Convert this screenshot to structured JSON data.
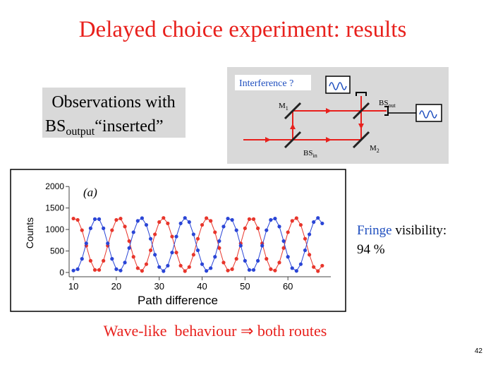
{
  "title": "Delayed choice experiment: results",
  "observations": {
    "line1": "Observations with",
    "bs": "BS",
    "sub": "output",
    "quote": "“inserted”"
  },
  "diagram": {
    "label": "Interference ?",
    "m1": "M",
    "m1_sub": "1",
    "m2": "M",
    "m2_sub": "2",
    "bs_in": "BS",
    "bs_in_sub": "in",
    "bs_out": "BS",
    "bs_out_sub": "out"
  },
  "chart_data": {
    "type": "scatter",
    "annotation": "(a)",
    "xlabel": "Path difference",
    "ylabel": "Counts",
    "x": [
      10,
      11,
      12,
      13,
      14,
      15,
      16,
      17,
      18,
      19,
      20,
      21,
      22,
      23,
      24,
      25,
      26,
      27,
      28,
      29,
      30,
      31,
      32,
      33,
      34,
      35,
      36,
      37,
      38,
      39,
      40,
      41,
      42,
      43,
      44,
      45,
      46,
      47,
      48,
      49,
      50,
      51,
      52,
      53,
      54,
      55,
      56,
      57,
      58,
      59,
      60,
      61,
      62,
      63,
      64,
      65,
      66,
      67,
      68
    ],
    "series": [
      {
        "color": "#e8352b",
        "values": [
          1255,
          1223,
          983,
          623,
          272,
          59,
          59,
          272,
          623,
          983,
          1223,
          1255,
          1069,
          731,
          364,
          100,
          36,
          193,
          516,
          887,
          1173,
          1269,
          1142,
          836,
          464,
          158,
          31,
          127,
          413,
          784,
          1107,
          1264,
          1200,
          936,
          569,
          231,
          45,
          77,
          317,
          677,
          1028,
          1241,
          1241,
          1028,
          677,
          317,
          77,
          45,
          231,
          569,
          936,
          1200,
          1264,
          1107,
          784,
          413,
          127,
          31,
          158
        ]
      },
      {
        "color": "#2a45d6",
        "values": [
          45,
          77,
          317,
          677,
          1028,
          1241,
          1241,
          1028,
          677,
          317,
          77,
          45,
          231,
          569,
          936,
          1200,
          1264,
          1107,
          784,
          413,
          127,
          31,
          158,
          464,
          836,
          1142,
          1269,
          1173,
          887,
          516,
          193,
          36,
          100,
          364,
          731,
          1069,
          1255,
          1223,
          983,
          623,
          272,
          59,
          59,
          272,
          623,
          983,
          1223,
          1255,
          1069,
          731,
          364,
          100,
          36,
          193,
          516,
          887,
          1173,
          1269,
          1142
        ]
      }
    ],
    "fit_lines": true,
    "xlim": [
      9,
      70
    ],
    "ylim": [
      -100,
      2000
    ],
    "xticks": [
      10,
      20,
      30,
      40,
      50,
      60
    ],
    "yticks": [
      0,
      500,
      1000,
      1500,
      2000
    ]
  },
  "fringe": {
    "word": "Fringe",
    "rest": " visibility:",
    "value": "94 %"
  },
  "conclusion": "Wave-like  behaviour ⇒ both routes",
  "page_number": "42"
}
